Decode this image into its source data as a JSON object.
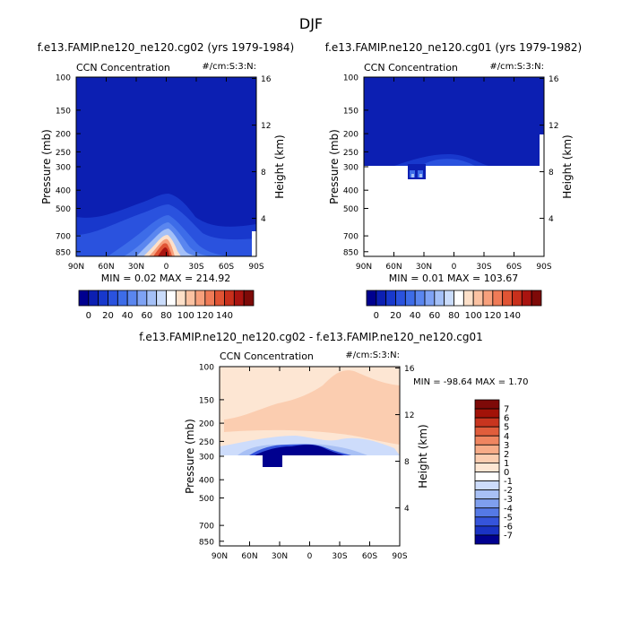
{
  "page_title": "DJF",
  "colors": {
    "seq": [
      "#00008f",
      "#0c1fb2",
      "#1838cc",
      "#2a52de",
      "#3d6ce8",
      "#5a86ef",
      "#7ea2f4",
      "#a4c0f7",
      "#cadcfb",
      "#ffffff",
      "#fde0c9",
      "#fbc2a2",
      "#f7a07c",
      "#ef7b57",
      "#e05434",
      "#c8301c",
      "#a91410",
      "#7e0a08"
    ],
    "diff": [
      "#00008f",
      "#1a33c4",
      "#3554db",
      "#5579e6",
      "#7f9fee",
      "#a8c0f5",
      "#cddcfb",
      "#ffffff",
      "#fde6d3",
      "#fbcdb0",
      "#f7ac88",
      "#ef8560",
      "#e05d3c",
      "#c8351f",
      "#a21208",
      "#7e0a08"
    ]
  },
  "panels": [
    {
      "id": "cg02",
      "title": "f.e13.FAMIP.ne120_ne120.cg02 (yrs 1979-1984)",
      "variable": "CCN Concentration",
      "units": "#/cm:S:3:N:",
      "min_max_text": "MIN =   0.02   MAX = 214.92",
      "colorbar_labels": [
        "0",
        "20",
        "40",
        "60",
        "80",
        "100",
        "120",
        "140"
      ]
    },
    {
      "id": "cg01",
      "title": "f.e13.FAMIP.ne120_ne120.cg01 (yrs 1979-1982)",
      "variable": "CCN Concentration",
      "units": "#/cm:S:3:N:",
      "min_max_text": "MIN =   0.01   MAX = 103.67",
      "colorbar_labels": [
        "0",
        "20",
        "40",
        "60",
        "80",
        "100",
        "120",
        "140"
      ]
    },
    {
      "id": "diff",
      "title": "f.e13.FAMIP.ne120_ne120.cg02 - f.e13.FAMIP.ne120_ne120.cg01",
      "variable": "CCN Concentration",
      "units": "#/cm:S:3:N:",
      "min_max_text": "MIN = -98.64   MAX =    1.70",
      "colorbar_labels": [
        "7",
        "6",
        "5",
        "4",
        "3",
        "2",
        "1",
        "0",
        "-1",
        "-2",
        "-3",
        "-4",
        "-5",
        "-6",
        "-7"
      ]
    }
  ],
  "chart_data": [
    {
      "type": "heatmap",
      "panel": "cg02",
      "title": "f.e13.FAMIP.ne120_ne120.cg02 (yrs 1979-1984)",
      "subtitle": "CCN Concentration",
      "units": "#/cm:S:3:N:",
      "xlabel": "",
      "ylabel": "Pressure (mb)",
      "y2label": "Height (km)",
      "x_ticks": [
        "90N",
        "60N",
        "30N",
        "0",
        "30S",
        "60S",
        "90S"
      ],
      "y_ticks": [
        "100",
        "150",
        "200",
        "250",
        "300",
        "400",
        "500",
        "700",
        "850"
      ],
      "y2_ticks": [
        "16",
        "12",
        "8",
        "4"
      ],
      "xlim": [
        90,
        -90
      ],
      "ylim_mb": [
        100,
        900
      ],
      "zmin": 0.02,
      "zmax": 214.92,
      "levels": [
        0,
        10,
        20,
        30,
        40,
        50,
        60,
        70,
        80,
        90,
        100,
        110,
        120,
        130,
        140,
        150,
        160,
        170
      ],
      "peak": {
        "lat": 0,
        "p_mb": 900,
        "value": 214.92
      }
    },
    {
      "type": "heatmap",
      "panel": "cg01",
      "title": "f.e13.FAMIP.ne120_ne120.cg01 (yrs 1979-1982)",
      "subtitle": "CCN Concentration",
      "units": "#/cm:S:3:N:",
      "ylabel": "Pressure (mb)",
      "y2label": "Height (km)",
      "x_ticks": [
        "90N",
        "60N",
        "30N",
        "0",
        "30S",
        "60S",
        "90S"
      ],
      "y_ticks": [
        "100",
        "150",
        "200",
        "250",
        "300",
        "400",
        "500",
        "700",
        "850"
      ],
      "y2_ticks": [
        "16",
        "12",
        "8",
        "4"
      ],
      "xlim": [
        90,
        -90
      ],
      "ylim_mb": [
        100,
        900
      ],
      "data_bottom_mb": 300,
      "zmin": 0.01,
      "zmax": 103.67,
      "levels": [
        0,
        10,
        20,
        30,
        40,
        50,
        60,
        70,
        80,
        90,
        100,
        110,
        120,
        130,
        140,
        150,
        160,
        170
      ]
    },
    {
      "type": "heatmap",
      "panel": "diff",
      "title": "f.e13.FAMIP.ne120_ne120.cg02 - f.e13.FAMIP.ne120_ne120.cg01",
      "subtitle": "CCN Concentration",
      "units": "#/cm:S:3:N:",
      "ylabel": "Pressure (mb)",
      "y2label": "Height (km)",
      "x_ticks": [
        "90N",
        "60N",
        "30N",
        "0",
        "30S",
        "60S",
        "90S"
      ],
      "y_ticks": [
        "100",
        "150",
        "200",
        "250",
        "300",
        "400",
        "500",
        "700",
        "850"
      ],
      "y2_ticks": [
        "16",
        "12",
        "8",
        "4"
      ],
      "xlim": [
        90,
        -90
      ],
      "ylim_mb": [
        100,
        900
      ],
      "data_bottom_mb": 300,
      "zmin": -98.64,
      "zmax": 1.7,
      "levels": [
        -7,
        -6,
        -5,
        -4,
        -3,
        -2,
        -1,
        0,
        1,
        2,
        3,
        4,
        5,
        6,
        7
      ]
    }
  ]
}
